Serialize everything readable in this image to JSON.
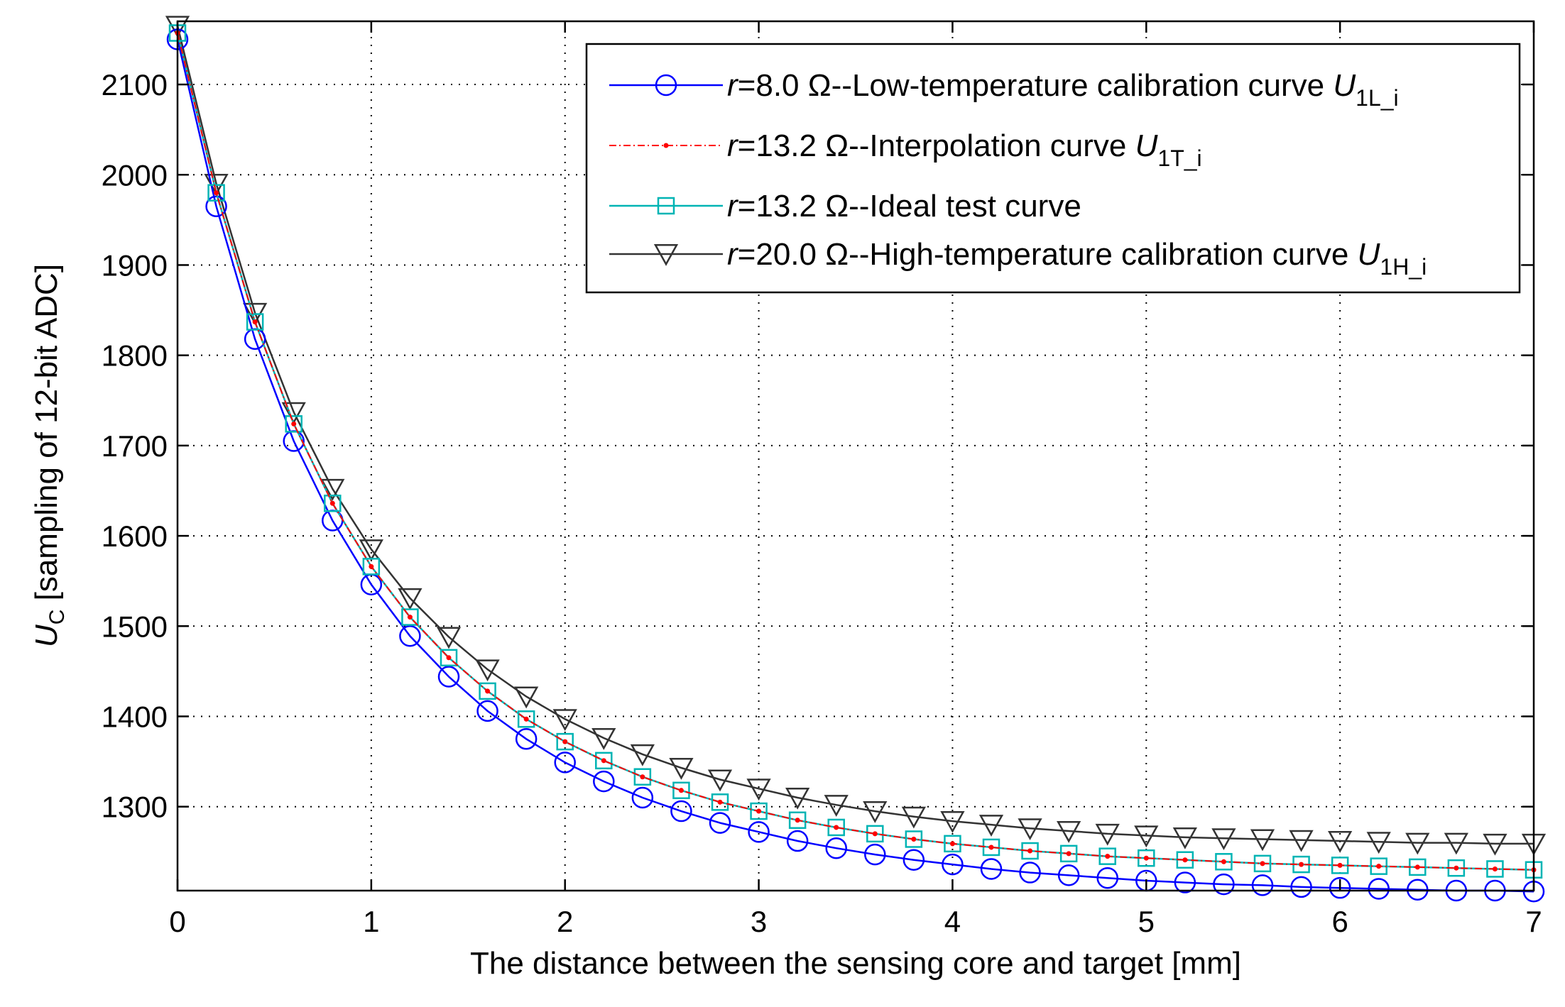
{
  "chart_data": {
    "type": "line",
    "title": "",
    "xlabel": "The distance between the sensing core and target [mm]",
    "ylabel": {
      "var": "U",
      "sub": "C",
      "rest": " [sampling of 12-bit ADC]"
    },
    "xlim": [
      0,
      7
    ],
    "ylim": [
      1207,
      2170
    ],
    "xticks": [
      0,
      1,
      2,
      3,
      4,
      5,
      6,
      7
    ],
    "yticks": [
      1300,
      1400,
      1500,
      1600,
      1700,
      1800,
      1900,
      2000,
      2100
    ],
    "grid": true,
    "legend_position": "top-right",
    "x": [
      0,
      0.2,
      0.4,
      0.6,
      0.8,
      1.0,
      1.2,
      1.4,
      1.6,
      1.8,
      2.0,
      2.2,
      2.4,
      2.6,
      2.8,
      3.0,
      3.2,
      3.4,
      3.6,
      3.8,
      4.0,
      4.2,
      4.4,
      4.6,
      4.8,
      5.0,
      5.2,
      5.4,
      5.6,
      5.8,
      6.0,
      6.2,
      6.4,
      6.6,
      6.8,
      7.0
    ],
    "series": [
      {
        "name": "r=8.0 Ω--Low-temperature calibration curve U1L_i",
        "legend": {
          "italic": "r",
          "text": "=8.0 Ω--Low-temperature calibration curve ",
          "var": "U",
          "sub": "1L_i"
        },
        "color": "#0000ff",
        "marker": "circle",
        "line": "solid",
        "values": [
          2150,
          1965,
          1818,
          1705,
          1617,
          1546,
          1489,
          1444,
          1406,
          1375,
          1349,
          1328,
          1310,
          1295,
          1282,
          1272,
          1262,
          1254,
          1247,
          1241,
          1236,
          1231,
          1227,
          1224,
          1221,
          1218,
          1216,
          1214,
          1213,
          1211,
          1210,
          1209,
          1208,
          1207,
          1207,
          1206
        ]
      },
      {
        "name": "r=13.2 Ω--Interpolation curve U1T_i",
        "legend": {
          "italic": "r",
          "text": "=13.2 Ω--Interpolation curve ",
          "var": "U",
          "sub": "1T_i"
        },
        "color": "#ff0000",
        "marker": "dot",
        "line": "dashdot",
        "values": [
          2157,
          1980,
          1837,
          1724,
          1636,
          1566,
          1510,
          1465,
          1428,
          1397,
          1372,
          1351,
          1333,
          1318,
          1305,
          1295,
          1285,
          1277,
          1270,
          1264,
          1259,
          1255,
          1251,
          1248,
          1245,
          1243,
          1241,
          1239,
          1237,
          1236,
          1235,
          1234,
          1233,
          1232,
          1231,
          1230
        ]
      },
      {
        "name": "r=13.2 Ω--Ideal test curve",
        "legend": {
          "italic": "r",
          "text": "=13.2 Ω--Ideal test curve",
          "var": "",
          "sub": ""
        },
        "color": "#00b4b4",
        "marker": "square",
        "line": "solid",
        "values": [
          2157,
          1980,
          1837,
          1724,
          1636,
          1566,
          1510,
          1465,
          1428,
          1397,
          1372,
          1351,
          1333,
          1318,
          1305,
          1295,
          1285,
          1277,
          1270,
          1264,
          1259,
          1255,
          1251,
          1248,
          1245,
          1243,
          1241,
          1239,
          1237,
          1236,
          1235,
          1234,
          1233,
          1232,
          1231,
          1230
        ]
      },
      {
        "name": "r=20.0 Ω--High-temperature calibration curve U1H_i",
        "legend": {
          "italic": "r",
          "text": "=20.0 Ω--High-temperature calibration curve ",
          "var": "U",
          "sub": "1H_i"
        },
        "color": "#333333",
        "marker": "triangle-down",
        "line": "solid",
        "values": [
          2165,
          1990,
          1847,
          1737,
          1652,
          1585,
          1531,
          1488,
          1452,
          1422,
          1397,
          1376,
          1358,
          1343,
          1330,
          1320,
          1310,
          1302,
          1295,
          1289,
          1284,
          1280,
          1276,
          1273,
          1270,
          1268,
          1266,
          1265,
          1264,
          1263,
          1262,
          1261,
          1260,
          1260,
          1259,
          1259
        ]
      }
    ]
  }
}
